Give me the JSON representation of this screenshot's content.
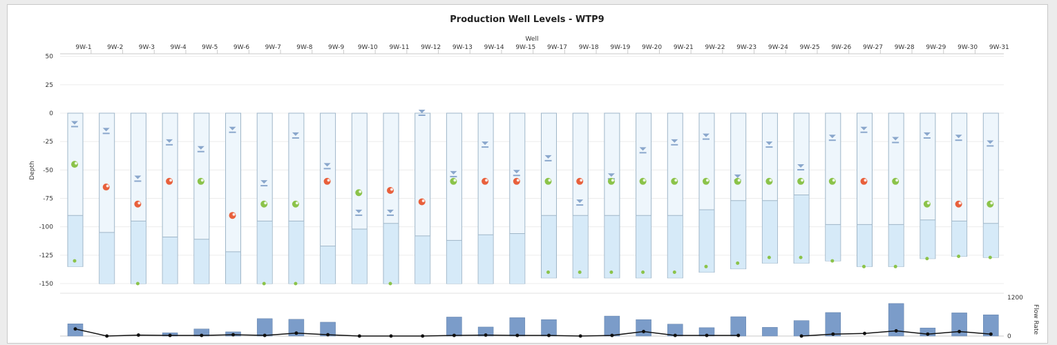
{
  "chart_data": {
    "type": "custom-well-levels",
    "title": "Production Well Levels - WTP9",
    "x_axis_title": "Well",
    "y_axis_title": "Depth",
    "y_ticks": [
      50,
      25,
      0,
      -25,
      -50,
      -75,
      -100,
      -125,
      -150
    ],
    "flow_axis_title": "Flow Rate",
    "flow_ticks": [
      1200,
      0
    ],
    "flow_ylim": [
      0,
      1200
    ],
    "colors": {
      "well_tube": "#eef6fc",
      "well_fill": "#d6eaf8",
      "well_border": "#9fb6c8",
      "water_marker": "#8aa7cc",
      "pump_green": "#8bc34a",
      "pump_red": "#e8603c",
      "bottom_dot": "#8bc34a",
      "flow_bar": "#7b9cc9",
      "flow_line": "#111111"
    },
    "wells": [
      {
        "name": "9W-1",
        "bottom": -135,
        "fill_top": -90,
        "water": -10,
        "pump": -45,
        "pump_status": "green",
        "dot": -130
      },
      {
        "name": "9W-2",
        "bottom": -150,
        "fill_top": -105,
        "water": -16,
        "pump": -65,
        "pump_status": "red",
        "dot": null
      },
      {
        "name": "9W-3",
        "bottom": -150,
        "fill_top": -95,
        "water": -58,
        "pump": -80,
        "pump_status": "red",
        "dot": -150
      },
      {
        "name": "9W-4",
        "bottom": -150,
        "fill_top": -109,
        "water": -26,
        "pump": -60,
        "pump_status": "red",
        "dot": null
      },
      {
        "name": "9W-5",
        "bottom": -150,
        "fill_top": -111,
        "water": -32,
        "pump": -60,
        "pump_status": "green",
        "dot": null
      },
      {
        "name": "9W-6",
        "bottom": -150,
        "fill_top": -122,
        "water": -15,
        "pump": -90,
        "pump_status": "red",
        "dot": null
      },
      {
        "name": "9W-7",
        "bottom": -150,
        "fill_top": -95,
        "water": -62,
        "pump": -80,
        "pump_status": "green",
        "dot": -150
      },
      {
        "name": "9W-8",
        "bottom": -150,
        "fill_top": -95,
        "water": -20,
        "pump": -80,
        "pump_status": "green",
        "dot": -150
      },
      {
        "name": "9W-9",
        "bottom": -150,
        "fill_top": -117,
        "water": -47,
        "pump": -60,
        "pump_status": "red",
        "dot": null
      },
      {
        "name": "9W-10",
        "bottom": -150,
        "fill_top": -102,
        "water": -88,
        "pump": -70,
        "pump_status": "green",
        "dot": null
      },
      {
        "name": "9W-11",
        "bottom": -150,
        "fill_top": -97,
        "water": -88,
        "pump": -68,
        "pump_status": "red",
        "dot": -150
      },
      {
        "name": "9W-12",
        "bottom": -150,
        "fill_top": -108,
        "water": 0,
        "pump": -78,
        "pump_status": "red",
        "dot": null
      },
      {
        "name": "9W-13",
        "bottom": -150,
        "fill_top": -112,
        "water": -54,
        "pump": -60,
        "pump_status": "green",
        "dot": null
      },
      {
        "name": "9W-14",
        "bottom": -150,
        "fill_top": -107,
        "water": -28,
        "pump": -60,
        "pump_status": "red",
        "dot": null
      },
      {
        "name": "9W-15",
        "bottom": -150,
        "fill_top": -106,
        "water": -53,
        "pump": -60,
        "pump_status": "red",
        "dot": null
      },
      {
        "name": "9W-17",
        "bottom": -145,
        "fill_top": -90,
        "water": -40,
        "pump": -60,
        "pump_status": "green",
        "dot": -140
      },
      {
        "name": "9W-18",
        "bottom": -145,
        "fill_top": -90,
        "water": -79,
        "pump": -60,
        "pump_status": "red",
        "dot": -140
      },
      {
        "name": "9W-19",
        "bottom": -145,
        "fill_top": -90,
        "water": -56,
        "pump": -60,
        "pump_status": "green",
        "dot": -140
      },
      {
        "name": "9W-20",
        "bottom": -145,
        "fill_top": -90,
        "water": -33,
        "pump": -60,
        "pump_status": "green",
        "dot": -140
      },
      {
        "name": "9W-21",
        "bottom": -145,
        "fill_top": -90,
        "water": -26,
        "pump": -60,
        "pump_status": "green",
        "dot": -140
      },
      {
        "name": "9W-22",
        "bottom": -140,
        "fill_top": -85,
        "water": -21,
        "pump": -60,
        "pump_status": "green",
        "dot": -135
      },
      {
        "name": "9W-23",
        "bottom": -137,
        "fill_top": -77,
        "water": -57,
        "pump": -60,
        "pump_status": "green",
        "dot": -132
      },
      {
        "name": "9W-24",
        "bottom": -132,
        "fill_top": -77,
        "water": -28,
        "pump": -60,
        "pump_status": "green",
        "dot": -127
      },
      {
        "name": "9W-25",
        "bottom": -132,
        "fill_top": -72,
        "water": -48,
        "pump": -60,
        "pump_status": "green",
        "dot": -127
      },
      {
        "name": "9W-26",
        "bottom": -130,
        "fill_top": -98,
        "water": -22,
        "pump": -60,
        "pump_status": "green",
        "dot": -130
      },
      {
        "name": "9W-27",
        "bottom": -135,
        "fill_top": -98,
        "water": -15,
        "pump": -60,
        "pump_status": "red",
        "dot": -135
      },
      {
        "name": "9W-28",
        "bottom": -135,
        "fill_top": -98,
        "water": -24,
        "pump": -60,
        "pump_status": "green",
        "dot": -135
      },
      {
        "name": "9W-29",
        "bottom": -128,
        "fill_top": -94,
        "water": -20,
        "pump": -80,
        "pump_status": "green",
        "dot": -128
      },
      {
        "name": "9W-30",
        "bottom": -126,
        "fill_top": -95,
        "water": -22,
        "pump": -80,
        "pump_status": "red",
        "dot": -126
      },
      {
        "name": "9W-31",
        "bottom": -127,
        "fill_top": -97,
        "water": -27,
        "pump": -80,
        "pump_status": "green",
        "dot": -127
      }
    ],
    "flow_bars": [
      380,
      0,
      0,
      100,
      220,
      130,
      540,
      520,
      430,
      0,
      0,
      0,
      590,
      280,
      570,
      510,
      0,
      620,
      510,
      370,
      260,
      600,
      270,
      480,
      730,
      0,
      1010,
      250,
      720,
      660
    ],
    "flow_line": [
      220,
      0,
      30,
      20,
      20,
      40,
      20,
      90,
      40,
      0,
      0,
      0,
      20,
      30,
      20,
      20,
      0,
      20,
      140,
      20,
      20,
      20,
      null,
      0,
      60,
      80,
      160,
      60,
      140,
      60
    ]
  }
}
